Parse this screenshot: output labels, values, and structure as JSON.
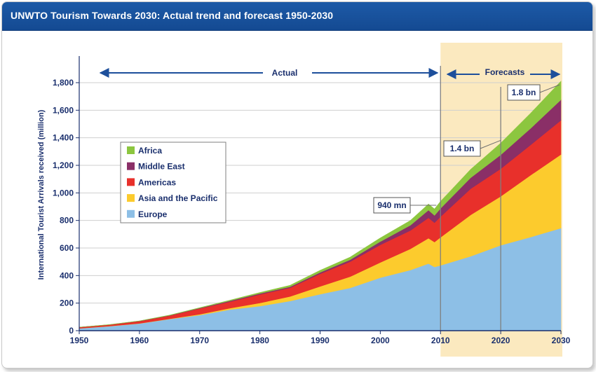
{
  "title": "UNWTO Tourism Towards 2030: Actual trend and forecast 1950-2030",
  "colors": {
    "title_bar": "#1a55a2",
    "text": "#1a2f6d",
    "forecast_band": "#fbe9bf",
    "Europe": "#8dbfe6",
    "Asia and the Pacific": "#fccb2d",
    "Americas": "#e8302b",
    "Middle East": "#8a2f67",
    "Africa": "#8cc63f"
  },
  "annotations": {
    "actual": "Actual",
    "forecasts": "Forecasts",
    "label_940": "940 mn",
    "label_14": "1.4 bn",
    "label_18": "1.8 bn"
  },
  "chart_data": {
    "type": "area",
    "stacked": true,
    "title": "UNWTO Tourism Towards 2030: Actual trend and forecast 1950-2030",
    "xlabel": "",
    "ylabel": "International Tourist Arrivals received (million)",
    "xlim": [
      1950,
      2030
    ],
    "ylim": [
      0,
      1900
    ],
    "xticks": [
      "1950",
      "1960",
      "1970",
      "1980",
      "1990",
      "2000",
      "2010",
      "2020",
      "2030"
    ],
    "yticks": [
      "0",
      "200",
      "400",
      "600",
      "800",
      "1,000",
      "1,200",
      "1,400",
      "1,600",
      "1,800"
    ],
    "grid": "horizontal",
    "legend_position": "left",
    "legend": [
      "Africa",
      "Middle East",
      "Americas",
      "Asia and the Pacific",
      "Europe"
    ],
    "x": [
      1950,
      1955,
      1960,
      1965,
      1970,
      1975,
      1980,
      1985,
      1990,
      1995,
      2000,
      2005,
      2008,
      2009,
      2010,
      2015,
      2020,
      2025,
      2030
    ],
    "series": [
      {
        "name": "Europe",
        "values": [
          17,
          32,
          52,
          84,
          113,
          153,
          178,
          215,
          265,
          310,
          385,
          440,
          487,
          462,
          474,
          540,
          620,
          680,
          744
        ]
      },
      {
        "name": "Asia and the Pacific",
        "values": [
          0,
          1,
          1,
          2,
          6,
          10,
          23,
          33,
          56,
          82,
          110,
          154,
          184,
          181,
          204,
          300,
          355,
          450,
          535
        ]
      },
      {
        "name": "Americas",
        "values": [
          8,
          10,
          16,
          23,
          42,
          47,
          62,
          63,
          92,
          109,
          128,
          133,
          148,
          141,
          150,
          190,
          200,
          220,
          248
        ]
      },
      {
        "name": "Middle East",
        "values": [
          0,
          0,
          1,
          2,
          3,
          6,
          7,
          8,
          10,
          14,
          24,
          38,
          56,
          53,
          60,
          80,
          101,
          120,
          149
        ]
      },
      {
        "name": "Africa",
        "values": [
          0,
          1,
          1,
          2,
          3,
          5,
          7,
          10,
          15,
          19,
          26,
          35,
          44,
          46,
          50,
          60,
          85,
          110,
          134
        ]
      }
    ],
    "forecast_start": 2010
  }
}
